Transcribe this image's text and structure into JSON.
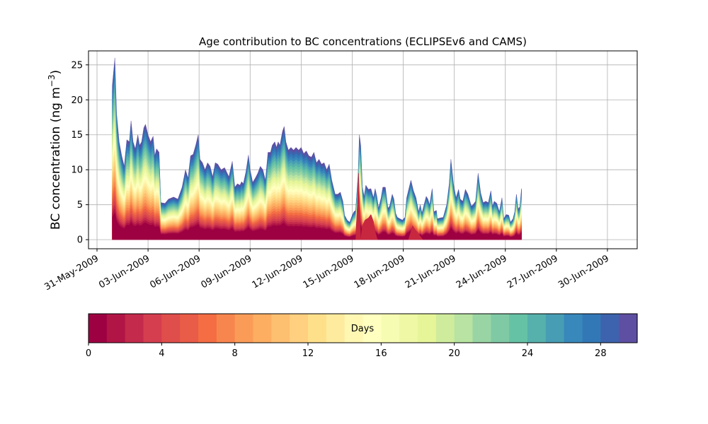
{
  "chart_data": {
    "type": "area",
    "subtype": "stacked-area-by-age",
    "title": "Age contribution to BC concentrations (ECLIPSEv6 and CAMS)",
    "ylabel_main": "BC concentration (ng m",
    "ylabel_sup": "−3",
    "ylabel_close": ")",
    "xlabel": "",
    "grid": true,
    "xlim": [
      -0.5,
      31.75
    ],
    "ylim": [
      -1.3,
      27.0
    ],
    "yticks": [
      0,
      5,
      10,
      15,
      20,
      25
    ],
    "ytick_labels": [
      "0",
      "5",
      "10",
      "15",
      "20",
      "25"
    ],
    "xticks": [
      0,
      3,
      6,
      9,
      12,
      15,
      18,
      21,
      24,
      27,
      30
    ],
    "xtick_labels": [
      "31-May-2009",
      "03-Jun-2009",
      "06-Jun-2009",
      "09-Jun-2009",
      "12-Jun-2009",
      "15-Jun-2009",
      "18-Jun-2009",
      "21-Jun-2009",
      "24-Jun-2009",
      "27-Jun-2009",
      "30-Jun-2009"
    ],
    "x_units": "days since 31-May-2009",
    "total": [
      [
        0.9,
        22
      ],
      [
        1.05,
        26
      ],
      [
        1.15,
        18
      ],
      [
        1.3,
        14
      ],
      [
        1.45,
        12
      ],
      [
        1.6,
        10.5
      ],
      [
        1.75,
        14.3
      ],
      [
        1.9,
        14
      ],
      [
        2.0,
        17
      ],
      [
        2.12,
        14
      ],
      [
        2.25,
        13
      ],
      [
        2.4,
        15
      ],
      [
        2.5,
        13.5
      ],
      [
        2.62,
        14
      ],
      [
        2.75,
        16
      ],
      [
        2.85,
        16.5
      ],
      [
        3.0,
        15
      ],
      [
        3.15,
        14
      ],
      [
        3.3,
        14.8
      ],
      [
        3.4,
        12
      ],
      [
        3.5,
        13
      ],
      [
        3.65,
        12.5
      ],
      [
        3.75,
        5.3
      ],
      [
        4.0,
        5.2
      ],
      [
        4.2,
        5.8
      ],
      [
        4.5,
        6.1
      ],
      [
        4.75,
        5.8
      ],
      [
        5.0,
        7.5
      ],
      [
        5.2,
        10
      ],
      [
        5.35,
        8.8
      ],
      [
        5.5,
        12
      ],
      [
        5.65,
        12.2
      ],
      [
        5.8,
        13.5
      ],
      [
        5.95,
        15
      ],
      [
        6.05,
        11.5
      ],
      [
        6.2,
        11
      ],
      [
        6.35,
        10
      ],
      [
        6.5,
        11
      ],
      [
        6.65,
        10.5
      ],
      [
        6.8,
        9
      ],
      [
        6.95,
        11
      ],
      [
        7.1,
        10.8
      ],
      [
        7.3,
        10
      ],
      [
        7.5,
        10.3
      ],
      [
        7.75,
        9
      ],
      [
        7.95,
        11.2
      ],
      [
        8.1,
        7.5
      ],
      [
        8.25,
        8
      ],
      [
        8.4,
        7.8
      ],
      [
        8.5,
        8.3
      ],
      [
        8.6,
        8
      ],
      [
        8.75,
        9.7
      ],
      [
        8.9,
        12.1
      ],
      [
        9.0,
        10
      ],
      [
        9.15,
        8.2
      ],
      [
        9.3,
        8.8
      ],
      [
        9.45,
        9.5
      ],
      [
        9.6,
        10.5
      ],
      [
        9.75,
        10
      ],
      [
        9.9,
        8.5
      ],
      [
        10.05,
        12.5
      ],
      [
        10.2,
        12.5
      ],
      [
        10.3,
        13.5
      ],
      [
        10.45,
        14
      ],
      [
        10.55,
        13.2
      ],
      [
        10.65,
        14
      ],
      [
        10.75,
        13.5
      ],
      [
        10.9,
        15.5
      ],
      [
        11.0,
        16.2
      ],
      [
        11.1,
        14
      ],
      [
        11.25,
        12.8
      ],
      [
        11.4,
        13.2
      ],
      [
        11.55,
        12.8
      ],
      [
        11.7,
        13.2
      ],
      [
        11.85,
        12.8
      ],
      [
        12.0,
        13.2
      ],
      [
        12.15,
        12.3
      ],
      [
        12.3,
        12.7
      ],
      [
        12.45,
        12
      ],
      [
        12.6,
        11.8
      ],
      [
        12.75,
        12.5
      ],
      [
        12.9,
        11
      ],
      [
        13.05,
        11.5
      ],
      [
        13.2,
        10.8
      ],
      [
        13.35,
        11
      ],
      [
        13.5,
        10
      ],
      [
        13.65,
        10.8
      ],
      [
        13.8,
        8.5
      ],
      [
        13.9,
        7.5
      ],
      [
        14.0,
        6.5
      ],
      [
        14.15,
        6.5
      ],
      [
        14.3,
        6.8
      ],
      [
        14.45,
        5.5
      ],
      [
        14.55,
        3.5
      ],
      [
        14.7,
        2.8
      ],
      [
        14.85,
        2.5
      ],
      [
        15.0,
        3.5
      ],
      [
        15.1,
        4
      ],
      [
        15.2,
        4.2
      ],
      [
        15.35,
        9.5
      ],
      [
        15.42,
        15
      ],
      [
        15.5,
        13.5
      ],
      [
        15.6,
        7.5
      ],
      [
        15.7,
        6.2
      ],
      [
        15.8,
        7.8
      ],
      [
        15.95,
        7.2
      ],
      [
        16.1,
        7.3
      ],
      [
        16.25,
        6
      ],
      [
        16.35,
        7.3
      ],
      [
        16.45,
        6.2
      ],
      [
        16.55,
        4.5
      ],
      [
        16.7,
        6
      ],
      [
        16.8,
        7.5
      ],
      [
        16.95,
        7.5
      ],
      [
        17.1,
        4.5
      ],
      [
        17.2,
        4.8
      ],
      [
        17.35,
        6.5
      ],
      [
        17.45,
        5.8
      ],
      [
        17.55,
        3.8
      ],
      [
        17.65,
        3.2
      ],
      [
        17.8,
        3
      ],
      [
        17.95,
        2.8
      ],
      [
        18.1,
        3.2
      ],
      [
        18.2,
        6
      ],
      [
        18.35,
        7.5
      ],
      [
        18.45,
        8.5
      ],
      [
        18.6,
        7
      ],
      [
        18.75,
        6
      ],
      [
        18.9,
        4
      ],
      [
        19.0,
        5
      ],
      [
        19.1,
        3.8
      ],
      [
        19.2,
        4.8
      ],
      [
        19.35,
        6.2
      ],
      [
        19.45,
        5.8
      ],
      [
        19.55,
        5
      ],
      [
        19.7,
        7.3
      ],
      [
        19.8,
        4
      ],
      [
        19.95,
        4.2
      ],
      [
        20.0,
        3
      ],
      [
        20.15,
        3.1
      ],
      [
        20.35,
        3.2
      ],
      [
        20.55,
        5
      ],
      [
        20.7,
        8
      ],
      [
        20.8,
        11.5
      ],
      [
        20.95,
        8
      ],
      [
        21.1,
        6
      ],
      [
        21.25,
        7.2
      ],
      [
        21.35,
        5.8
      ],
      [
        21.5,
        5.5
      ],
      [
        21.65,
        7.2
      ],
      [
        21.8,
        6.5
      ],
      [
        22.0,
        4.8
      ],
      [
        22.1,
        5
      ],
      [
        22.25,
        5.5
      ],
      [
        22.4,
        9.5
      ],
      [
        22.55,
        6.7
      ],
      [
        22.7,
        5.3
      ],
      [
        22.85,
        5.5
      ],
      [
        23.0,
        5.3
      ],
      [
        23.15,
        7
      ],
      [
        23.25,
        4.8
      ],
      [
        23.35,
        5.5
      ],
      [
        23.5,
        5.2
      ],
      [
        23.65,
        4
      ],
      [
        23.8,
        6
      ],
      [
        23.9,
        3
      ],
      [
        24.05,
        3.6
      ],
      [
        24.2,
        3.5
      ],
      [
        24.3,
        2.5
      ],
      [
        24.45,
        3
      ],
      [
        24.55,
        4
      ],
      [
        24.65,
        6.5
      ],
      [
        24.75,
        4.4
      ],
      [
        24.85,
        4.7
      ],
      [
        24.95,
        7.3
      ]
    ],
    "spikes": [
      [
        15.2,
        0
      ],
      [
        15.3,
        5
      ],
      [
        15.38,
        9.5
      ],
      [
        15.45,
        3.5
      ],
      [
        15.5,
        0.2
      ],
      [
        15.6,
        2
      ],
      [
        15.75,
        2.8
      ],
      [
        15.95,
        3.1
      ],
      [
        16.1,
        3.6
      ],
      [
        16.25,
        2.6
      ],
      [
        16.35,
        1.2
      ],
      [
        16.45,
        0.3
      ],
      [
        16.5,
        0
      ],
      [
        18.3,
        0
      ],
      [
        18.45,
        1.2
      ],
      [
        18.55,
        2
      ],
      [
        18.7,
        1.4
      ],
      [
        18.85,
        1
      ],
      [
        19.0,
        0.5
      ],
      [
        19.15,
        0
      ]
    ],
    "colorbar": {
      "label": "Days",
      "min": 0,
      "max": 30,
      "ticks": [
        0,
        4,
        8,
        12,
        16,
        20,
        24,
        28
      ],
      "tick_labels": [
        "0",
        "4",
        "8",
        "12",
        "16",
        "20",
        "24",
        "28"
      ],
      "levels": 30,
      "colors": [
        "#9e0142",
        "#b11546",
        "#c42a4b",
        "#d53e4f",
        "#df4e4b",
        "#e95c47",
        "#f46d43",
        "#f7864e",
        "#fa9c58",
        "#fdae61",
        "#fdc070",
        "#fed07f",
        "#fee08b",
        "#feeb9e",
        "#fff7b2",
        "#ffffbf",
        "#f7fcb3",
        "#eef8a5",
        "#e6f598",
        "#cfec9d",
        "#b8e3a2",
        "#99d5a4",
        "#7fcaa5",
        "#66c2a5",
        "#56b0ac",
        "#479eb4",
        "#3888bb",
        "#3378b6",
        "#3d63ae",
        "#5e4fa2"
      ]
    }
  }
}
